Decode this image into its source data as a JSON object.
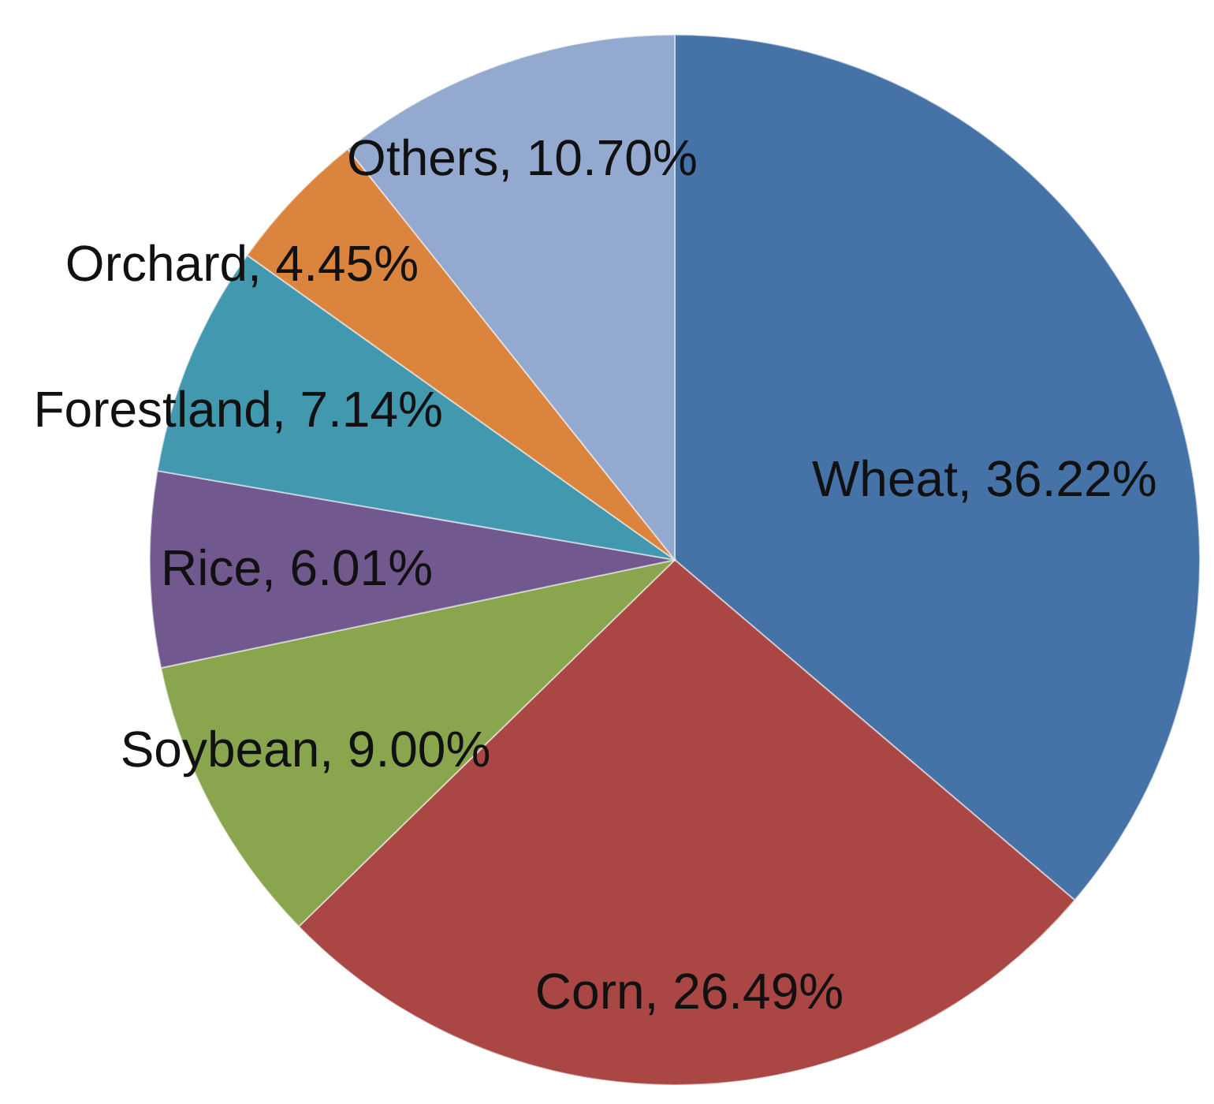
{
  "chart_data": {
    "type": "pie",
    "categories": [
      "Wheat",
      "Corn",
      "Soybean",
      "Rice",
      "Forestland",
      "Orchard",
      "Others"
    ],
    "values": [
      36.22,
      26.49,
      9.0,
      6.01,
      7.14,
      4.45,
      10.7
    ],
    "colors": [
      "#4572a7",
      "#aa4643",
      "#89a54e",
      "#71588f",
      "#4198af",
      "#db843d",
      "#93a9cf"
    ],
    "value_labels": [
      "36.22%",
      "26.49%",
      "9.00%",
      "6.01%",
      "7.14%",
      "4.45%",
      "10.70%"
    ]
  }
}
